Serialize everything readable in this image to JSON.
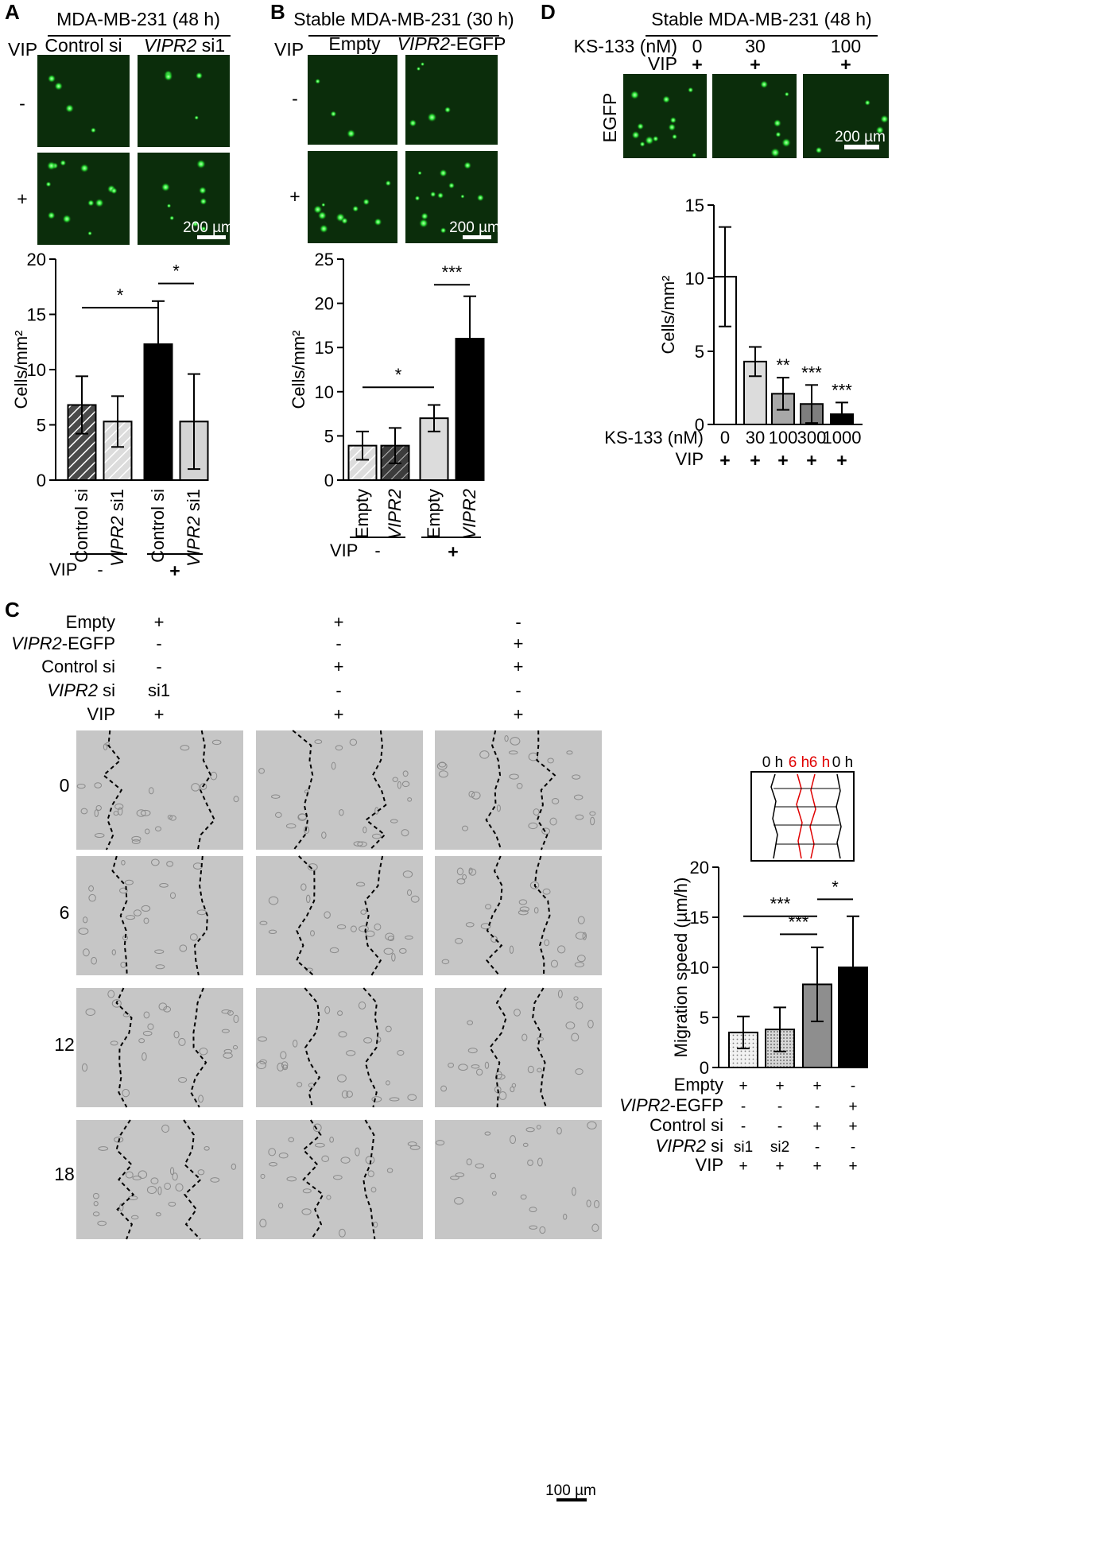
{
  "panels": {
    "A": {
      "letter": "A",
      "header": "MDA-MB-231 (48 h)",
      "row_label": "VIP",
      "col_labels": [
        {
          "pre": "",
          "it": "",
          "post": "Control si"
        },
        {
          "pre": "",
          "it": "VIPR2",
          "post": " si1"
        }
      ],
      "rows": [
        "-",
        "+"
      ],
      "scale": "200 µm"
    },
    "B": {
      "letter": "B",
      "header": "Stable MDA-MB-231 (30 h)",
      "row_label": "VIP",
      "col_labels": [
        {
          "pre": "",
          "it": "",
          "post": "Empty"
        },
        {
          "pre": "",
          "it": "VIPR2",
          "post": "-EGFP"
        }
      ],
      "rows": [
        "-",
        "+"
      ],
      "scale": "200 µm"
    },
    "C": {
      "letter": "C",
      "cond_labels": [
        {
          "it": "",
          "post": "Empty"
        },
        {
          "it": "VIPR2",
          "post": "-EGFP"
        },
        {
          "it": "",
          "post": "Control si"
        },
        {
          "it": "VIPR2",
          "post": " si"
        },
        {
          "it": "",
          "post": "VIP"
        }
      ],
      "cond_values": [
        [
          "+",
          "-",
          "-",
          "si1",
          "+"
        ],
        [
          "+",
          "-",
          "+",
          "-",
          "+"
        ],
        [
          "-",
          "+",
          "+",
          "-",
          "+"
        ]
      ],
      "time_labels": [
        "0",
        "6",
        "12",
        "18"
      ],
      "scale": "100 µm",
      "inset_labels": [
        "0 h",
        "6 h",
        "6 h",
        "0 h"
      ]
    },
    "D": {
      "letter": "D",
      "header": "Stable MDA-MB-231 (48 h)",
      "ks_label": "KS-133 (nM)",
      "vip_label": "VIP",
      "ks_values": [
        "0",
        "30",
        "100"
      ],
      "vip_values": [
        "+",
        "+",
        "+"
      ],
      "row_label": "EGFP",
      "scale": "200 µm"
    }
  },
  "chart_data": [
    {
      "type": "bar",
      "panel": "A",
      "ylabel": "Cells/mm²",
      "ylim": [
        0,
        20
      ],
      "yticks": [
        "0",
        "5",
        "10",
        "15",
        "20"
      ],
      "categories": [
        {
          "it": "",
          "post": "Control si"
        },
        {
          "it": "VIPR2",
          "post": " si1"
        },
        {
          "it": "",
          "post": "Control si"
        },
        {
          "it": "VIPR2",
          "post": " si1"
        }
      ],
      "values": [
        6.8,
        5.3,
        12.3,
        5.3
      ],
      "errors": [
        2.6,
        2.3,
        3.9,
        4.3
      ],
      "fills": [
        "#4a4a4a",
        "#dcdcdc",
        "#000000",
        "#d4d4d4"
      ],
      "hatched": [
        true,
        true,
        false,
        false
      ],
      "group_label": "VIP",
      "groups": [
        "-",
        "+"
      ],
      "sig": [
        "*",
        "*"
      ]
    },
    {
      "type": "bar",
      "panel": "B",
      "ylabel": "Cells/mm²",
      "ylim": [
        0,
        25
      ],
      "yticks": [
        "0",
        "5",
        "10",
        "15",
        "20",
        "25"
      ],
      "categories": [
        {
          "it": "",
          "post": "Empty"
        },
        {
          "it": "VIPR2",
          "post": ""
        },
        {
          "it": "",
          "post": "Empty"
        },
        {
          "it": "VIPR2",
          "post": ""
        }
      ],
      "values": [
        3.9,
        3.9,
        7.0,
        16.0
      ],
      "errors": [
        1.6,
        2.0,
        1.5,
        4.8
      ],
      "fills": [
        "#dcdcdc",
        "#3c3c3c",
        "#dcdcdc",
        "#000000"
      ],
      "hatched": [
        true,
        true,
        false,
        false
      ],
      "group_label": "VIP",
      "groups": [
        "-",
        "+"
      ],
      "sig": [
        "*",
        "***"
      ]
    },
    {
      "type": "bar",
      "panel": "D",
      "ylabel": "Cells/mm²",
      "ylim": [
        0,
        15
      ],
      "yticks": [
        "0",
        "5",
        "10",
        "15"
      ],
      "categories": [
        "0",
        "30",
        "100",
        "300",
        "1000"
      ],
      "values": [
        10.1,
        4.3,
        2.1,
        1.4,
        0.7
      ],
      "errors": [
        3.4,
        1.0,
        1.1,
        1.3,
        0.8
      ],
      "fills": [
        "#ffffff",
        "#dcdcdc",
        "#a8a8a8",
        "#7e7e7e",
        "#000000"
      ],
      "row_labels": [
        "KS-133 (nM)",
        "VIP"
      ],
      "vip": [
        "+",
        "+",
        "+",
        "+",
        "+"
      ],
      "sig": [
        "",
        "",
        "**",
        "***",
        "***"
      ]
    },
    {
      "type": "bar",
      "panel": "C",
      "ylabel": "Migration speed (µm/h)",
      "ylim": [
        0,
        20
      ],
      "yticks": [
        "0",
        "5",
        "10",
        "15",
        "20"
      ],
      "values": [
        3.5,
        3.8,
        8.3,
        10.0
      ],
      "errors": [
        1.6,
        2.2,
        3.7,
        5.1
      ],
      "fills": [
        "#e4e4e4",
        "#cfcfcf",
        "#8e8e8e",
        "#000000"
      ],
      "dotted": [
        true,
        true,
        false,
        false
      ],
      "table_rows": [
        {
          "it": "",
          "post": "Empty"
        },
        {
          "it": "VIPR2",
          "post": "-EGFP"
        },
        {
          "it": "",
          "post": "Control si"
        },
        {
          "it": "VIPR2",
          "post": " si"
        },
        {
          "it": "",
          "post": "VIP"
        }
      ],
      "table": [
        [
          "+",
          "+",
          "+",
          "-"
        ],
        [
          "-",
          "-",
          "-",
          "+"
        ],
        [
          "-",
          "-",
          "+",
          "+"
        ],
        [
          "si1",
          "si2",
          "-",
          "-"
        ],
        [
          "+",
          "+",
          "+",
          "+"
        ]
      ],
      "sig": [
        "***",
        "***",
        "*"
      ]
    }
  ]
}
